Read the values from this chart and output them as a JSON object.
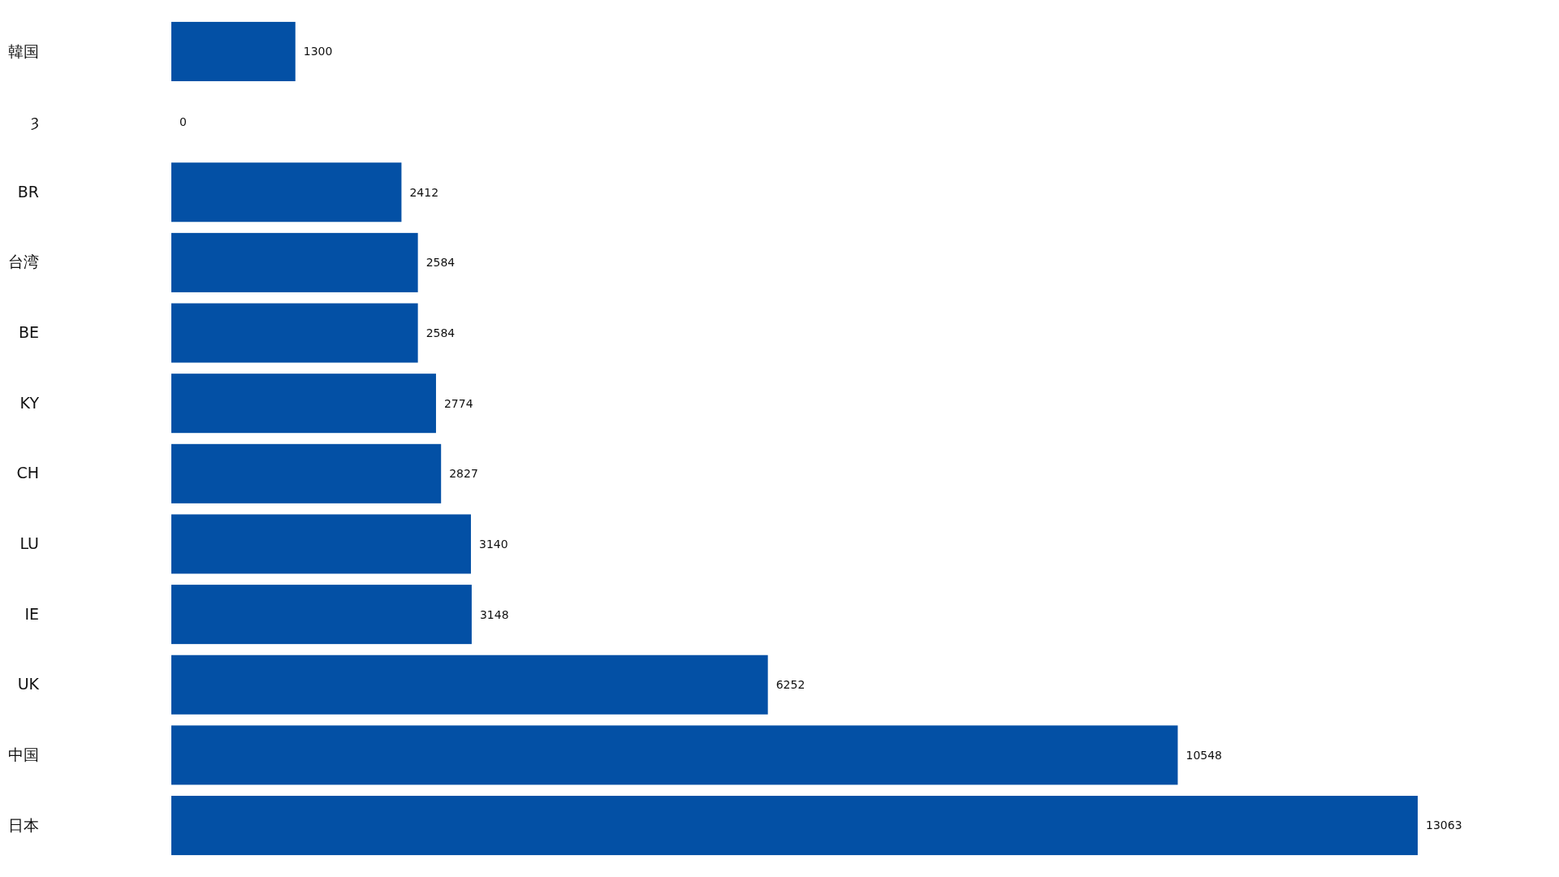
{
  "chart_data": {
    "type": "bar",
    "orientation": "horizontal",
    "categories": [
      "韓国",
      "ȝ",
      "BR",
      "台湾",
      "BE",
      "KY",
      "CH",
      "LU",
      "IE",
      "UK",
      "中国",
      "日本"
    ],
    "values": [
      1300,
      0,
      2412,
      2584,
      2584,
      2774,
      2827,
      3140,
      3148,
      6252,
      10548,
      13063
    ],
    "color": "#0350a5",
    "data_labels": true,
    "tick_labels": "y"
  }
}
